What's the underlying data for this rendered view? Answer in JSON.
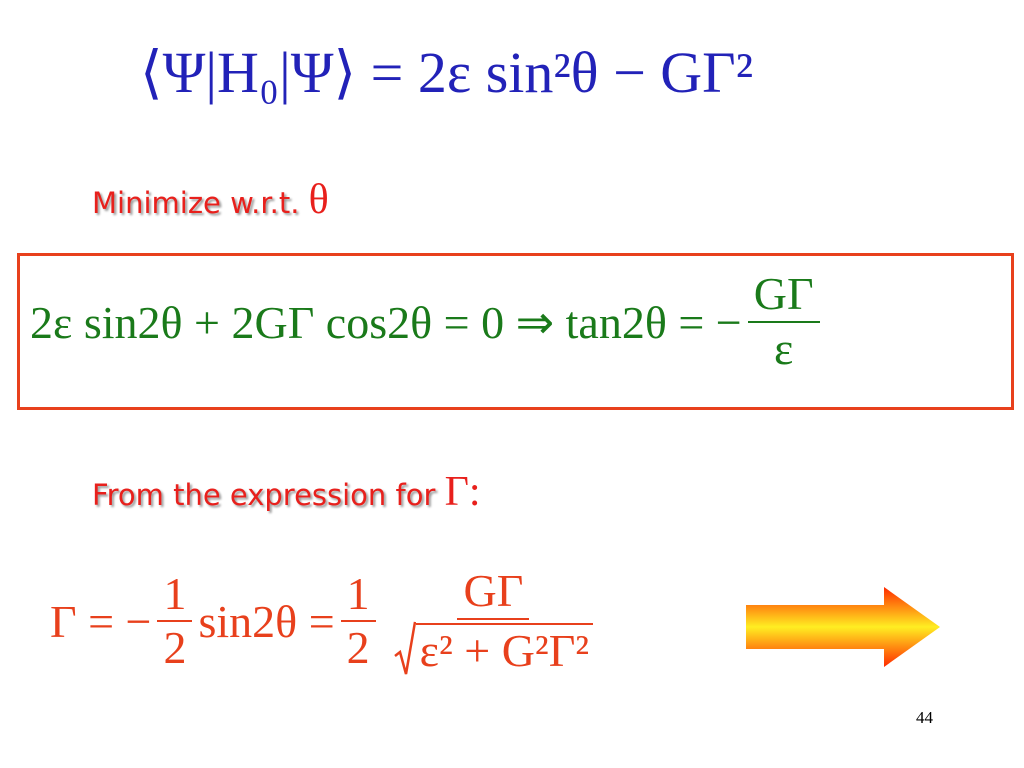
{
  "equation_1": "⟨Ψ|H₀|Ψ⟩ = 2ε sin²θ − GΓ²",
  "instruction_1": "Minimize w.r.t.",
  "instruction_1_symbol": "θ",
  "equation_2": {
    "left": "2ε sin2θ + 2GΓ cos2θ = 0 ⇒ tan2θ = −",
    "numerator": "GΓ",
    "denominator": "ε"
  },
  "instruction_2": "From the expression for",
  "instruction_2_symbol": "Γ:",
  "equation_3": {
    "part_1": "Γ = −",
    "fraction_1": {
      "numerator": "1",
      "denominator": "2"
    },
    "part_2": "sin2θ =",
    "fraction_2": {
      "numerator": "1",
      "denominator": "2"
    },
    "fraction_3": {
      "numerator": "GΓ",
      "denominator": "ε² + G²Γ²"
    }
  },
  "page_number": "44"
}
